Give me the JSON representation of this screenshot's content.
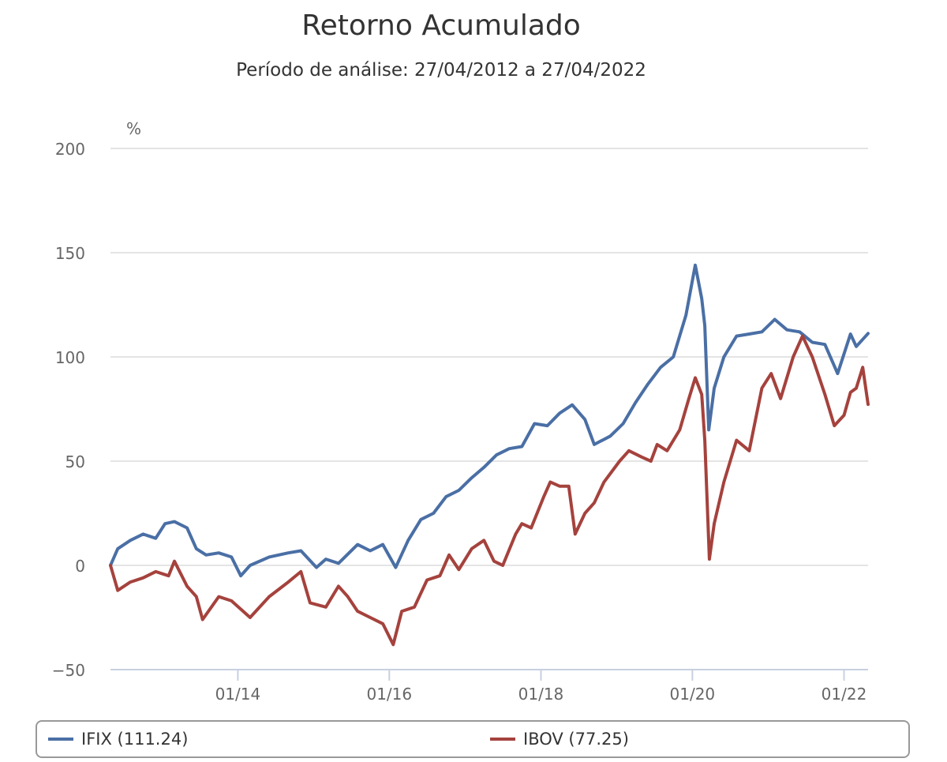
{
  "chart_data": {
    "type": "line",
    "title": "Retorno Acumulado",
    "subtitle": "Período de análise: 27/04/2012 a 27/04/2022",
    "ylabel": "%",
    "ylim": [
      -50,
      200
    ],
    "yticks": [
      -50,
      0,
      50,
      100,
      150,
      200
    ],
    "xlim": [
      "2012-04-27",
      "2022-04-27"
    ],
    "xticks": [
      {
        "date": "2014-01-01",
        "label": "01/14"
      },
      {
        "date": "2016-01-01",
        "label": "01/16"
      },
      {
        "date": "2018-01-01",
        "label": "01/18"
      },
      {
        "date": "2020-01-01",
        "label": "01/20"
      },
      {
        "date": "2022-01-01",
        "label": "01/22"
      }
    ],
    "grid": true,
    "legend_position": "bottom",
    "series": [
      {
        "name": "IFIX",
        "legend_label": "IFIX (111.24)",
        "color": "#4a6fa5",
        "points": [
          [
            "2012-04-27",
            0
          ],
          [
            "2012-06-01",
            8
          ],
          [
            "2012-08-01",
            12
          ],
          [
            "2012-10-01",
            15
          ],
          [
            "2012-12-01",
            13
          ],
          [
            "2013-01-15",
            20
          ],
          [
            "2013-03-01",
            21
          ],
          [
            "2013-05-01",
            18
          ],
          [
            "2013-06-15",
            8
          ],
          [
            "2013-08-01",
            5
          ],
          [
            "2013-10-01",
            6
          ],
          [
            "2013-12-01",
            4
          ],
          [
            "2014-01-15",
            -5
          ],
          [
            "2014-03-01",
            0
          ],
          [
            "2014-06-01",
            4
          ],
          [
            "2014-09-01",
            6
          ],
          [
            "2014-11-01",
            7
          ],
          [
            "2015-01-15",
            -1
          ],
          [
            "2015-03-01",
            3
          ],
          [
            "2015-05-01",
            1
          ],
          [
            "2015-08-01",
            10
          ],
          [
            "2015-10-01",
            7
          ],
          [
            "2015-12-01",
            10
          ],
          [
            "2016-02-01",
            -1
          ],
          [
            "2016-04-01",
            12
          ],
          [
            "2016-06-01",
            22
          ],
          [
            "2016-08-01",
            25
          ],
          [
            "2016-10-01",
            33
          ],
          [
            "2016-12-01",
            36
          ],
          [
            "2017-02-01",
            42
          ],
          [
            "2017-04-01",
            47
          ],
          [
            "2017-06-01",
            53
          ],
          [
            "2017-08-01",
            56
          ],
          [
            "2017-10-01",
            57
          ],
          [
            "2017-12-01",
            68
          ],
          [
            "2018-02-01",
            67
          ],
          [
            "2018-04-01",
            73
          ],
          [
            "2018-06-01",
            77
          ],
          [
            "2018-08-01",
            70
          ],
          [
            "2018-09-15",
            58
          ],
          [
            "2018-12-01",
            62
          ],
          [
            "2019-02-01",
            68
          ],
          [
            "2019-04-01",
            78
          ],
          [
            "2019-06-01",
            87
          ],
          [
            "2019-08-01",
            95
          ],
          [
            "2019-10-01",
            100
          ],
          [
            "2019-12-01",
            120
          ],
          [
            "2020-01-15",
            144
          ],
          [
            "2020-02-15",
            128
          ],
          [
            "2020-03-01",
            115
          ],
          [
            "2020-03-20",
            65
          ],
          [
            "2020-04-15",
            85
          ],
          [
            "2020-06-01",
            100
          ],
          [
            "2020-08-01",
            110
          ],
          [
            "2020-10-01",
            111
          ],
          [
            "2020-12-01",
            112
          ],
          [
            "2021-02-01",
            118
          ],
          [
            "2021-04-01",
            113
          ],
          [
            "2021-06-01",
            112
          ],
          [
            "2021-08-01",
            107
          ],
          [
            "2021-10-01",
            106
          ],
          [
            "2021-12-01",
            92
          ],
          [
            "2022-02-01",
            111
          ],
          [
            "2022-03-01",
            105
          ],
          [
            "2022-04-27",
            111.24
          ]
        ]
      },
      {
        "name": "IBOV",
        "legend_label": "IBOV (77.25)",
        "color": "#a5423d",
        "points": [
          [
            "2012-04-27",
            0
          ],
          [
            "2012-06-01",
            -12
          ],
          [
            "2012-08-01",
            -8
          ],
          [
            "2012-10-01",
            -6
          ],
          [
            "2012-12-01",
            -3
          ],
          [
            "2013-02-01",
            -5
          ],
          [
            "2013-03-01",
            2
          ],
          [
            "2013-05-01",
            -10
          ],
          [
            "2013-06-15",
            -15
          ],
          [
            "2013-07-15",
            -26
          ],
          [
            "2013-10-01",
            -15
          ],
          [
            "2013-12-01",
            -17
          ],
          [
            "2014-03-01",
            -25
          ],
          [
            "2014-06-01",
            -15
          ],
          [
            "2014-09-01",
            -8
          ],
          [
            "2014-11-01",
            -3
          ],
          [
            "2014-12-15",
            -18
          ],
          [
            "2015-03-01",
            -20
          ],
          [
            "2015-05-01",
            -10
          ],
          [
            "2015-06-15",
            -15
          ],
          [
            "2015-08-01",
            -22
          ],
          [
            "2015-10-01",
            -25
          ],
          [
            "2015-12-01",
            -28
          ],
          [
            "2016-01-20",
            -38
          ],
          [
            "2016-03-01",
            -22
          ],
          [
            "2016-05-01",
            -20
          ],
          [
            "2016-07-01",
            -7
          ],
          [
            "2016-09-01",
            -5
          ],
          [
            "2016-10-15",
            5
          ],
          [
            "2016-12-01",
            -2
          ],
          [
            "2017-02-01",
            8
          ],
          [
            "2017-04-01",
            12
          ],
          [
            "2017-05-20",
            2
          ],
          [
            "2017-07-01",
            0
          ],
          [
            "2017-09-01",
            15
          ],
          [
            "2017-10-01",
            20
          ],
          [
            "2017-11-15",
            18
          ],
          [
            "2018-01-15",
            33
          ],
          [
            "2018-02-15",
            40
          ],
          [
            "2018-04-01",
            38
          ],
          [
            "2018-05-15",
            38
          ],
          [
            "2018-06-15",
            15
          ],
          [
            "2018-08-01",
            25
          ],
          [
            "2018-09-15",
            30
          ],
          [
            "2018-11-01",
            40
          ],
          [
            "2019-01-15",
            50
          ],
          [
            "2019-03-01",
            55
          ],
          [
            "2019-05-01",
            52
          ],
          [
            "2019-06-15",
            50
          ],
          [
            "2019-07-15",
            58
          ],
          [
            "2019-09-01",
            55
          ],
          [
            "2019-11-01",
            65
          ],
          [
            "2019-12-15",
            80
          ],
          [
            "2020-01-15",
            90
          ],
          [
            "2020-02-15",
            82
          ],
          [
            "2020-03-01",
            60
          ],
          [
            "2020-03-23",
            3
          ],
          [
            "2020-04-15",
            20
          ],
          [
            "2020-06-01",
            40
          ],
          [
            "2020-08-01",
            60
          ],
          [
            "2020-10-01",
            55
          ],
          [
            "2020-12-01",
            85
          ],
          [
            "2021-01-15",
            92
          ],
          [
            "2021-03-01",
            80
          ],
          [
            "2021-05-01",
            100
          ],
          [
            "2021-06-15",
            110
          ],
          [
            "2021-08-01",
            100
          ],
          [
            "2021-10-01",
            82
          ],
          [
            "2021-11-15",
            67
          ],
          [
            "2022-01-01",
            72
          ],
          [
            "2022-02-01",
            83
          ],
          [
            "2022-03-01",
            85
          ],
          [
            "2022-04-01",
            95
          ],
          [
            "2022-04-27",
            77.25
          ]
        ]
      }
    ]
  }
}
